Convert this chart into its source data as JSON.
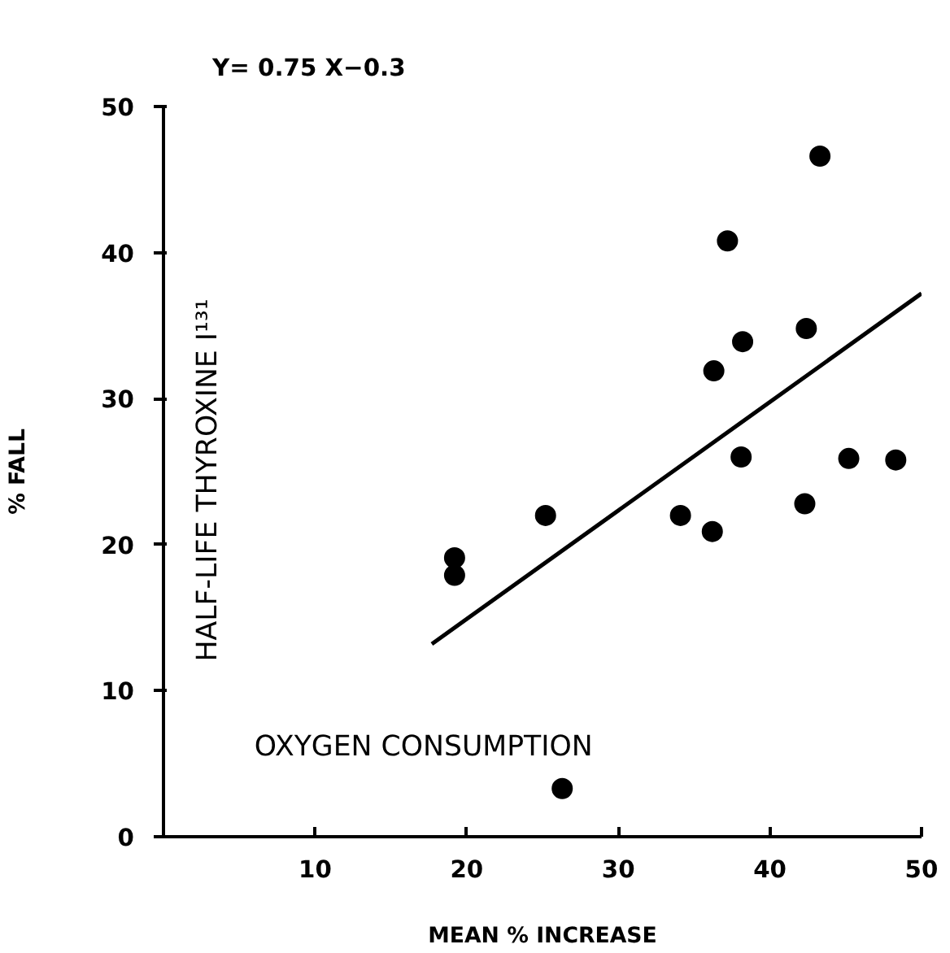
{
  "chart_data": {
    "type": "scatter",
    "title": "Y= 0.75 X−0.3",
    "xlabel": "MEAN % INCREASE",
    "ylabel": "% FALL",
    "annotations": [
      "HALF-LIFE THYROXINE I¹³¹",
      "OXYGEN CONSUMPTION"
    ],
    "xlim": [
      0,
      50
    ],
    "ylim": [
      0,
      50
    ],
    "xticks": [
      10,
      20,
      30,
      40,
      50
    ],
    "yticks": [
      0,
      10,
      20,
      30,
      40,
      50
    ],
    "grid": false,
    "series": [
      {
        "marker": "circle",
        "color": "#000000",
        "x": [
          43.3,
          37.2,
          42.4,
          38.2,
          36.3,
          38.1,
          45.2,
          48.3,
          42.3,
          34.1,
          36.2,
          25.2,
          19.2,
          19.2,
          26.3
        ],
        "values": [
          46.6,
          40.8,
          34.8,
          33.9,
          31.9,
          26.0,
          25.9,
          25.8,
          22.8,
          22.0,
          20.9,
          22.0,
          19.1,
          17.9,
          3.3
        ]
      },
      {
        "type": "line",
        "color": "#000000",
        "line_style": "solid",
        "x": [
          17.7,
          50
        ],
        "values": [
          13.2,
          37.2
        ]
      }
    ]
  }
}
